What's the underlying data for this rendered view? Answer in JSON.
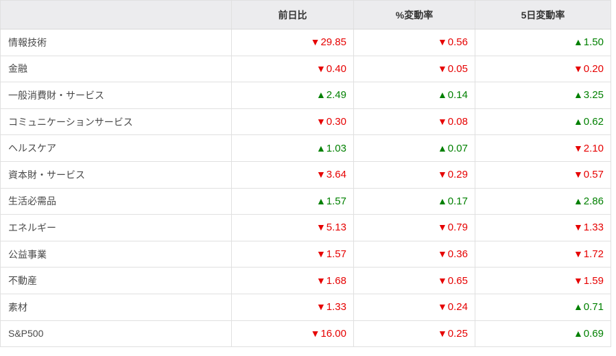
{
  "table": {
    "name": "sector-performance-table",
    "headers": [
      {
        "key": "sector",
        "label": ""
      },
      {
        "key": "change",
        "label": "前日比"
      },
      {
        "key": "pct_change",
        "label": "%変動率"
      },
      {
        "key": "five_day_change",
        "label": "5日変動率"
      }
    ],
    "glyphs": {
      "up": "▲",
      "down": "▼"
    },
    "colors": {
      "up": "#008000",
      "down": "#e60000",
      "header_bg": "#ececee",
      "border": "#e0e0e0",
      "header_border": "#d9d9d9",
      "label_text": "#4a4a4a",
      "header_text": "#333333"
    },
    "rows": [
      {
        "label": "情報技術",
        "cells": [
          {
            "dir": "down",
            "value": "29.85"
          },
          {
            "dir": "down",
            "value": "0.56"
          },
          {
            "dir": "up",
            "value": "1.50"
          }
        ]
      },
      {
        "label": "金融",
        "cells": [
          {
            "dir": "down",
            "value": "0.40"
          },
          {
            "dir": "down",
            "value": "0.05"
          },
          {
            "dir": "down",
            "value": "0.20"
          }
        ]
      },
      {
        "label": "一般消費財・サービス",
        "cells": [
          {
            "dir": "up",
            "value": "2.49"
          },
          {
            "dir": "up",
            "value": "0.14"
          },
          {
            "dir": "up",
            "value": "3.25"
          }
        ]
      },
      {
        "label": "コミュニケーションサービス",
        "cells": [
          {
            "dir": "down",
            "value": "0.30"
          },
          {
            "dir": "down",
            "value": "0.08"
          },
          {
            "dir": "up",
            "value": "0.62"
          }
        ]
      },
      {
        "label": "ヘルスケア",
        "cells": [
          {
            "dir": "up",
            "value": "1.03"
          },
          {
            "dir": "up",
            "value": "0.07"
          },
          {
            "dir": "down",
            "value": "2.10"
          }
        ]
      },
      {
        "label": "資本財・サービス",
        "cells": [
          {
            "dir": "down",
            "value": "3.64"
          },
          {
            "dir": "down",
            "value": "0.29"
          },
          {
            "dir": "down",
            "value": "0.57"
          }
        ]
      },
      {
        "label": "生活必需品",
        "cells": [
          {
            "dir": "up",
            "value": "1.57"
          },
          {
            "dir": "up",
            "value": "0.17"
          },
          {
            "dir": "up",
            "value": "2.86"
          }
        ]
      },
      {
        "label": "エネルギー",
        "cells": [
          {
            "dir": "down",
            "value": "5.13"
          },
          {
            "dir": "down",
            "value": "0.79"
          },
          {
            "dir": "down",
            "value": "1.33"
          }
        ]
      },
      {
        "label": "公益事業",
        "cells": [
          {
            "dir": "down",
            "value": "1.57"
          },
          {
            "dir": "down",
            "value": "0.36"
          },
          {
            "dir": "down",
            "value": "1.72"
          }
        ]
      },
      {
        "label": "不動産",
        "cells": [
          {
            "dir": "down",
            "value": "1.68"
          },
          {
            "dir": "down",
            "value": "0.65"
          },
          {
            "dir": "down",
            "value": "1.59"
          }
        ]
      },
      {
        "label": "素材",
        "cells": [
          {
            "dir": "down",
            "value": "1.33"
          },
          {
            "dir": "down",
            "value": "0.24"
          },
          {
            "dir": "up",
            "value": "0.71"
          }
        ]
      },
      {
        "label": "S&P500",
        "cells": [
          {
            "dir": "down",
            "value": "16.00"
          },
          {
            "dir": "down",
            "value": "0.25"
          },
          {
            "dir": "up",
            "value": "0.69"
          }
        ]
      }
    ]
  }
}
